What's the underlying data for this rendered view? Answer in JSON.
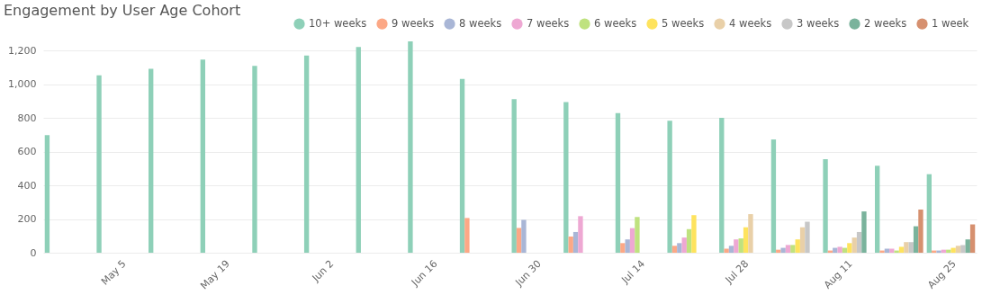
{
  "chart_data": {
    "type": "bar",
    "title": "Engagement by User Age Cohort",
    "categories": [
      null,
      "May 5",
      null,
      "May 19",
      null,
      "Jun 2",
      null,
      "Jun 16",
      null,
      "Jun 30",
      null,
      "Jul 14",
      null,
      "Jul 28",
      null,
      "Aug 11",
      null,
      "Aug 25"
    ],
    "ylim": [
      0,
      1254
    ],
    "yticks": [
      0,
      200,
      400,
      600,
      800,
      {
        "value": 1000,
        "label": "1,000"
      },
      {
        "value": 1200,
        "label": "1,200"
      }
    ],
    "grid": "y",
    "legend": "top right",
    "series": [
      {
        "name": "10+ weeks",
        "color": "#8ed0b8",
        "values": [
          698,
          1053,
          1091,
          1146,
          1109,
          1170,
          1220,
          1254,
          1031,
          911,
          894,
          828,
          783,
          800,
          672,
          555,
          516,
          466
        ]
      },
      {
        "name": "9 weeks",
        "color": "#fca886",
        "values": [
          null,
          null,
          null,
          null,
          null,
          null,
          null,
          null,
          206,
          147,
          96,
          57,
          41,
          24,
          18,
          13,
          13,
          13
        ]
      },
      {
        "name": "8 weeks",
        "color": "#a9b6d6",
        "values": [
          null,
          null,
          null,
          null,
          null,
          null,
          null,
          null,
          null,
          195,
          123,
          79,
          57,
          41,
          29,
          29,
          24,
          13
        ]
      },
      {
        "name": "7 weeks",
        "color": "#eea8d3",
        "values": [
          null,
          null,
          null,
          null,
          null,
          null,
          null,
          null,
          null,
          null,
          217,
          146,
          90,
          79,
          46,
          35,
          24,
          18
        ]
      },
      {
        "name": "6 weeks",
        "color": "#bfe27f",
        "values": [
          null,
          null,
          null,
          null,
          null,
          null,
          null,
          null,
          null,
          null,
          null,
          212,
          140,
          85,
          46,
          29,
          13,
          18
        ]
      },
      {
        "name": "5 weeks",
        "color": "#fee35e",
        "values": [
          null,
          null,
          null,
          null,
          null,
          null,
          null,
          null,
          null,
          null,
          null,
          null,
          223,
          151,
          79,
          57,
          35,
          29
        ]
      },
      {
        "name": "4 weeks",
        "color": "#e9d0a8",
        "values": [
          null,
          null,
          null,
          null,
          null,
          null,
          null,
          null,
          null,
          null,
          null,
          null,
          null,
          229,
          151,
          90,
          63,
          41
        ]
      },
      {
        "name": "3 weeks",
        "color": "#c7c7c7",
        "values": [
          null,
          null,
          null,
          null,
          null,
          null,
          null,
          null,
          null,
          null,
          null,
          null,
          null,
          null,
          184,
          123,
          63,
          46
        ]
      },
      {
        "name": "2 weeks",
        "color": "#7ab39c",
        "values": [
          null,
          null,
          null,
          null,
          null,
          null,
          null,
          null,
          null,
          null,
          null,
          null,
          null,
          null,
          null,
          245,
          157,
          79
        ]
      },
      {
        "name": "1 week",
        "color": "#d6906f",
        "values": [
          null,
          null,
          null,
          null,
          null,
          null,
          null,
          null,
          null,
          null,
          null,
          null,
          null,
          null,
          null,
          null,
          256,
          168
        ]
      }
    ]
  }
}
